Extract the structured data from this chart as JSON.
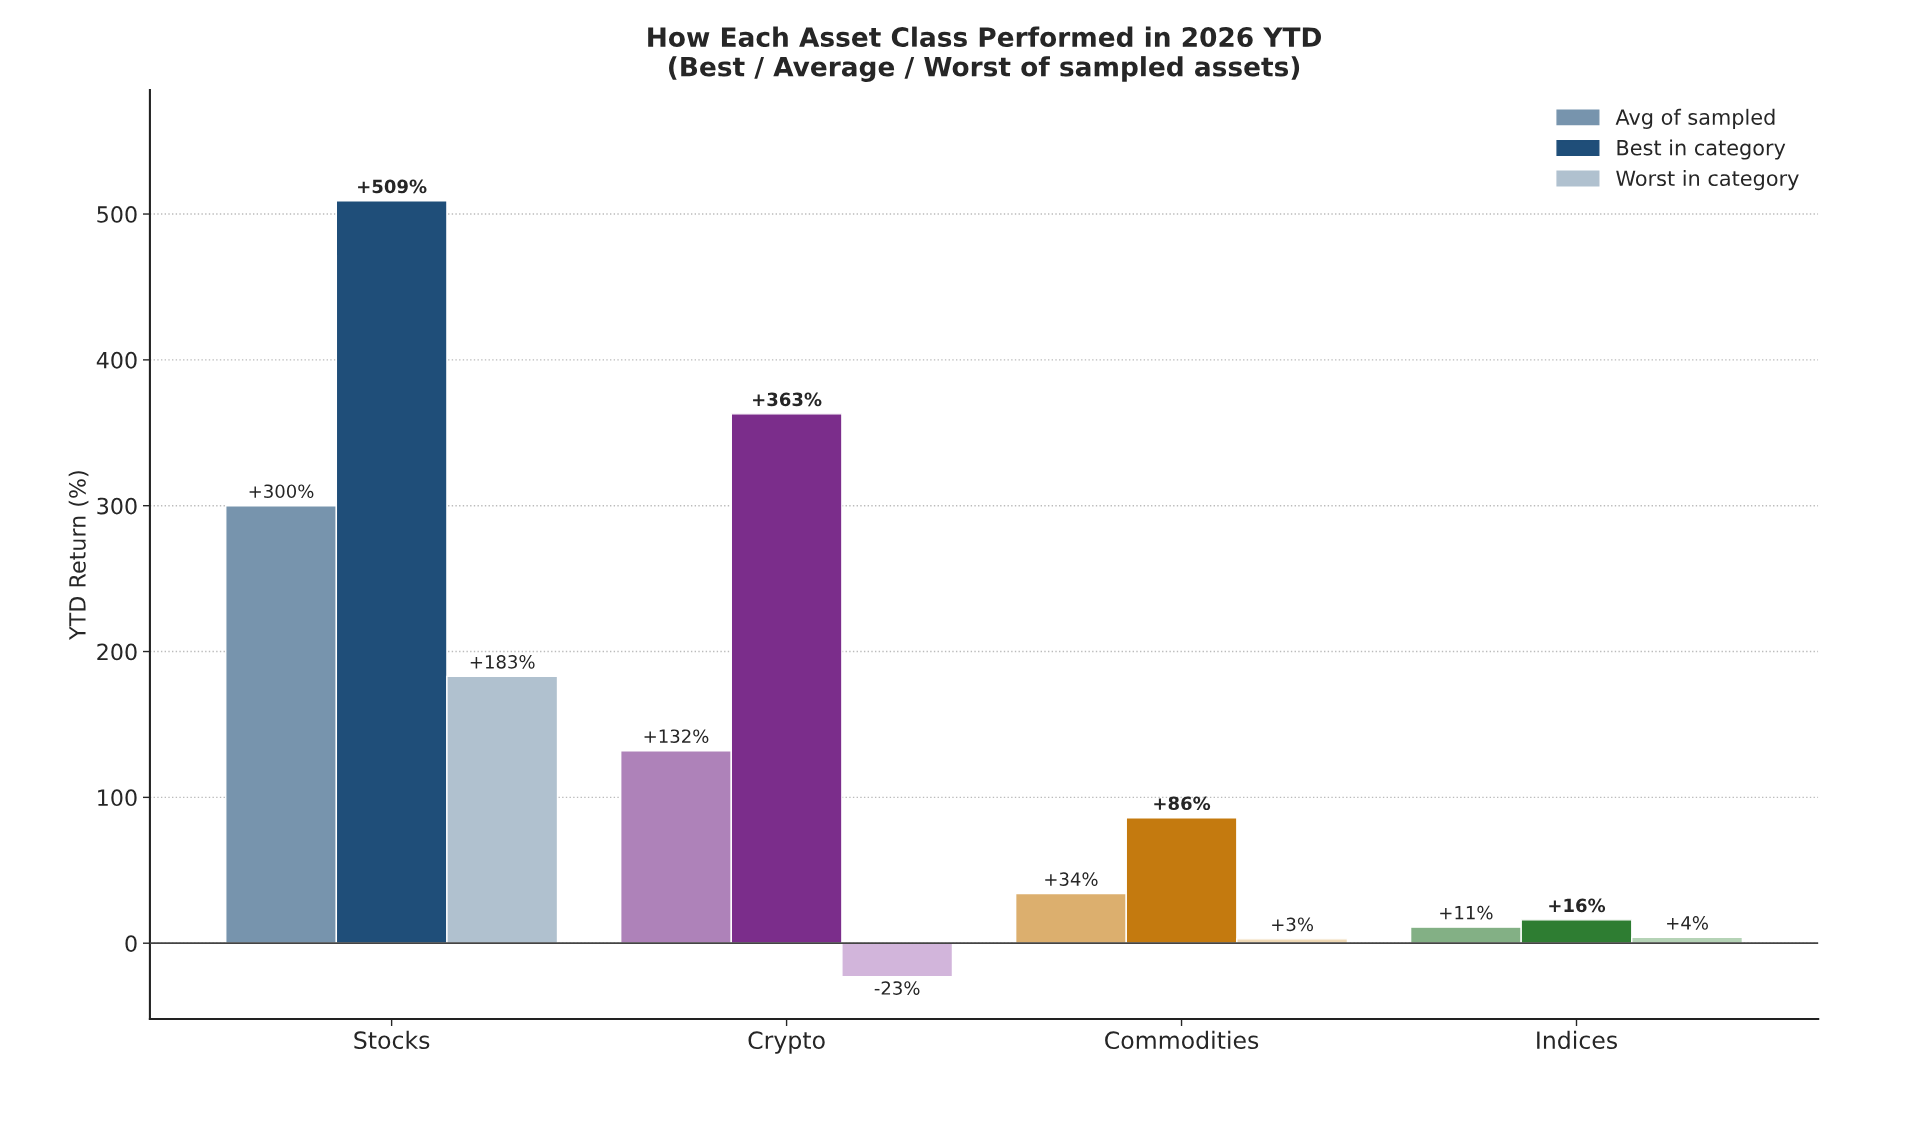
{
  "chart_data": {
    "type": "bar",
    "title": "How Each Asset Class Performed in 2026 YTD\n(Best / Average / Worst of sampled assets)",
    "ylabel": "YTD Return (%)",
    "categories": [
      "Stocks",
      "Crypto",
      "Commodities",
      "Indices"
    ],
    "series": [
      {
        "name": "Avg of sampled",
        "color": "#7794ad",
        "colors": [
          "#7794ad",
          "#ae82b9",
          "#dcaf6e",
          "#83b085"
        ],
        "values": [
          300,
          132,
          34,
          11
        ],
        "value_labels": [
          "+300%",
          "+132%",
          "+34%",
          "+11%"
        ]
      },
      {
        "name": "Best in category",
        "color": "#1f4e79",
        "colors": [
          "#1f4e79",
          "#7b2d8b",
          "#c47a0f",
          "#2e7d32"
        ],
        "values": [
          509,
          363,
          86,
          16
        ],
        "value_labels": [
          "+509%",
          "+363%",
          "+86%",
          "+16%"
        ]
      },
      {
        "name": "Worst in category",
        "color": "#b0c1cf",
        "colors": [
          "#b0c1cf",
          "#d2b5db",
          "#efd9b5",
          "#b5d3b6"
        ],
        "values": [
          183,
          -23,
          3,
          4
        ],
        "value_labels": [
          "+183%",
          "-23%",
          "+3%",
          "+4%"
        ]
      }
    ],
    "ylim": [
      -52,
      585
    ],
    "yticks": [
      0,
      100,
      200,
      300,
      400,
      500
    ],
    "grid": "y",
    "legend": "top right",
    "ref_lines": [
      {
        "axis": "y",
        "value": 0,
        "color": "#444444"
      }
    ]
  }
}
